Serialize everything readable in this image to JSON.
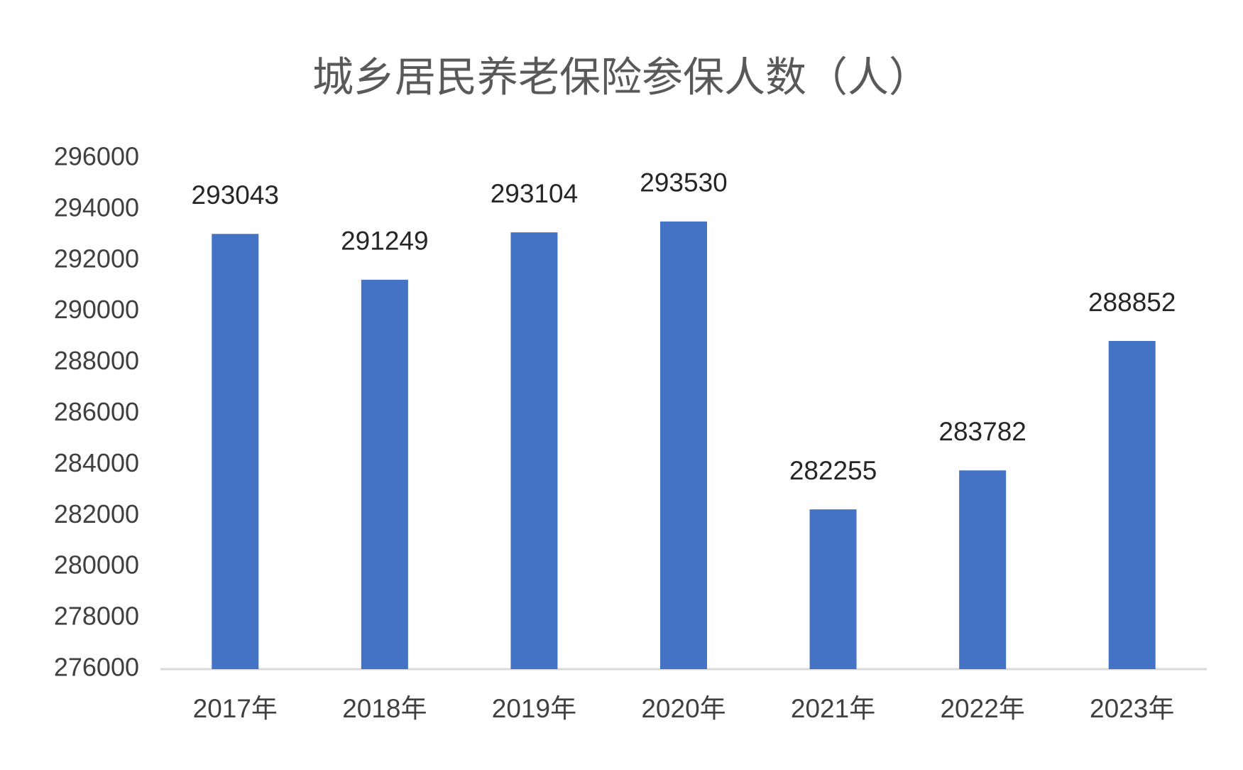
{
  "chart_data": {
    "type": "bar",
    "title": "城乡居民养老保险参保人数（人）",
    "categories": [
      "2017年",
      "2018年",
      "2019年",
      "2020年",
      "2021年",
      "2022年",
      "2023年"
    ],
    "values": [
      293043,
      291249,
      293104,
      293530,
      282255,
      283782,
      288852
    ],
    "color": "#4472c4",
    "ylim": [
      276000,
      296000
    ],
    "yticks": [
      276000,
      278000,
      280000,
      282000,
      284000,
      286000,
      288000,
      290000,
      292000,
      294000,
      296000
    ],
    "grid": false
  }
}
